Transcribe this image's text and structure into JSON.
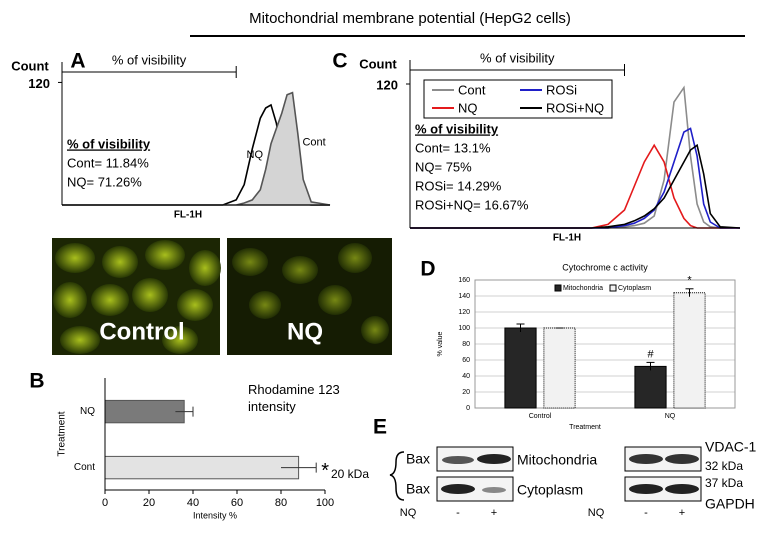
{
  "title": "Mitochondrial membrane potential (HepG2 cells)",
  "panel_labels": [
    "A",
    "B",
    "C",
    "D",
    "E"
  ],
  "micrographs": [
    "Control",
    "NQ"
  ],
  "western_blot": {
    "bax_rows": [
      "Bax",
      "Bax"
    ],
    "size_left": "20 kDa",
    "fractions": [
      "Mitochondria",
      "Cytoplasm"
    ],
    "right_labels": [
      "VDAC-1",
      "32 kDa",
      "37 kDa",
      "GAPDH"
    ],
    "treatment_label": "NQ",
    "treatment_states": [
      "-",
      "+"
    ]
  },
  "chart_data": [
    {
      "type": "line",
      "ylabel": "Count",
      "xlabel": "FL-1H",
      "marker_label": "% of visibility",
      "annotation_title": "% of visibility",
      "annotations": [
        "Cont= 11.84%",
        "NQ= 71.26%"
      ],
      "xlim": [
        0,
        100
      ],
      "ylim": [
        0,
        140
      ],
      "yticks": [
        120
      ],
      "curve_labels": true,
      "x": [
        0,
        60,
        65,
        68,
        71,
        74,
        76,
        78,
        80,
        82,
        84,
        86,
        88,
        90,
        93,
        100
      ],
      "series": [
        {
          "name": "NQ",
          "color": "#000000",
          "values": [
            0,
            0,
            5,
            20,
            55,
            85,
            95,
            98,
            80,
            45,
            20,
            8,
            3,
            1,
            0,
            0
          ]
        },
        {
          "name": "Cont",
          "color": "#555555",
          "fill": "#d4d4d4",
          "values": [
            0,
            0,
            0,
            2,
            5,
            15,
            35,
            60,
            75,
            90,
            108,
            110,
            70,
            25,
            3,
            0
          ]
        }
      ]
    },
    {
      "type": "line",
      "ylabel": "Count",
      "xlabel": "FL-1H",
      "marker_label": "% of visibility",
      "annotation_title": "% of visibility",
      "annotations": [
        "Cont= 13.1%",
        "NQ= 75%",
        "ROSi= 14.29%",
        "ROSi+NQ= 16.67%"
      ],
      "xlim": [
        0,
        100
      ],
      "ylim": [
        0,
        140
      ],
      "yticks": [
        120
      ],
      "legend": true,
      "x": [
        0,
        55,
        60,
        65,
        68,
        71,
        74,
        77,
        80,
        83,
        85,
        87,
        89,
        91,
        94,
        100
      ],
      "series": [
        {
          "name": "Cont",
          "color": "#8c8c8c",
          "values": [
            0,
            0,
            0,
            1,
            2,
            4,
            10,
            40,
            105,
            117,
            60,
            20,
            5,
            1,
            0,
            0
          ]
        },
        {
          "name": "NQ",
          "color": "#e41a1c",
          "values": [
            0,
            0,
            3,
            15,
            35,
            55,
            69,
            55,
            25,
            8,
            2,
            0,
            0,
            0,
            0,
            0
          ]
        },
        {
          "name": "ROSi",
          "color": "#1f1fc8",
          "values": [
            0,
            0,
            0,
            2,
            4,
            8,
            15,
            30,
            55,
            80,
            83,
            60,
            20,
            5,
            0,
            0
          ]
        },
        {
          "name": "ROSi+NQ",
          "color": "#000000",
          "values": [
            0,
            0,
            1,
            3,
            6,
            10,
            16,
            25,
            40,
            55,
            65,
            69,
            45,
            12,
            1,
            0
          ]
        }
      ]
    },
    {
      "type": "hbar",
      "subtitle": "Rhodamine 123 intensity",
      "xlabel": "Intensity %",
      "ylabel": "Treatment",
      "categories": [
        "NQ",
        "Cont"
      ],
      "values": [
        36,
        88
      ],
      "errors": [
        4,
        8
      ],
      "colors": [
        "#7a7a7a",
        "#e3e3e3"
      ],
      "xlim": [
        0,
        100
      ],
      "xticks": [
        0,
        20,
        40,
        60,
        80,
        100
      ],
      "annotation": "*"
    },
    {
      "type": "bar",
      "title": "Cytochrome c activity",
      "xlabel": "Treatment",
      "ylabel": "% value",
      "categories": [
        "Control",
        "NQ"
      ],
      "ylim": [
        0,
        160
      ],
      "yticks": [
        0,
        20,
        40,
        60,
        80,
        100,
        120,
        140,
        160
      ],
      "grid": true,
      "series": [
        {
          "name": "Mitochondria",
          "color": "#262626",
          "values": [
            100,
            52
          ],
          "errors": [
            5,
            5
          ]
        },
        {
          "name": "Cytoplasm",
          "color": "#f2f2f2",
          "values": [
            100,
            144
          ],
          "errors": [
            0,
            5
          ]
        }
      ],
      "annotations": [
        "#",
        "*"
      ]
    }
  ]
}
